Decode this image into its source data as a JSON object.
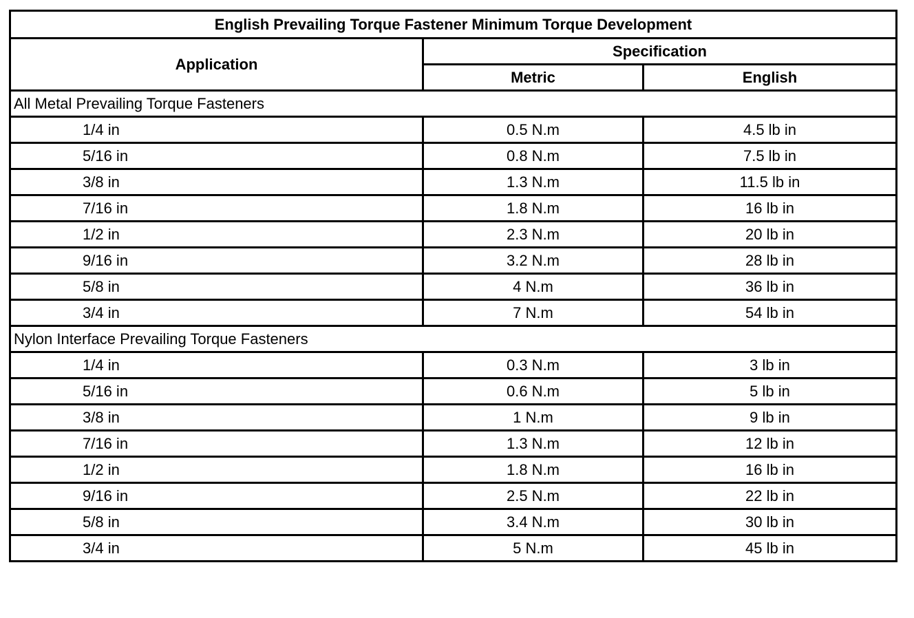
{
  "table": {
    "title": "English Prevailing Torque Fastener Minimum Torque Development",
    "headers": {
      "application": "Application",
      "specification": "Specification",
      "metric": "Metric",
      "english": "English"
    },
    "groups": [
      {
        "name": "All Metal Prevailing Torque Fasteners",
        "rows": [
          {
            "size": "1/4 in",
            "metric": "0.5 N.m",
            "english": "4.5 lb in"
          },
          {
            "size": "5/16 in",
            "metric": "0.8 N.m",
            "english": "7.5 lb in"
          },
          {
            "size": "3/8 in",
            "metric": "1.3 N.m",
            "english": "11.5 lb in"
          },
          {
            "size": "7/16 in",
            "metric": "1.8 N.m",
            "english": "16 lb in"
          },
          {
            "size": "1/2 in",
            "metric": "2.3 N.m",
            "english": "20 lb in"
          },
          {
            "size": "9/16 in",
            "metric": "3.2 N.m",
            "english": "28 lb in"
          },
          {
            "size": "5/8 in",
            "metric": "4 N.m",
            "english": "36 lb in"
          },
          {
            "size": "3/4 in",
            "metric": "7 N.m",
            "english": "54 lb in"
          }
        ]
      },
      {
        "name": "Nylon Interface Prevailing Torque Fasteners",
        "rows": [
          {
            "size": "1/4 in",
            "metric": "0.3 N.m",
            "english": "3 lb in"
          },
          {
            "size": "5/16 in",
            "metric": "0.6 N.m",
            "english": "5 lb in"
          },
          {
            "size": "3/8 in",
            "metric": "1 N.m",
            "english": "9 lb in"
          },
          {
            "size": "7/16 in",
            "metric": "1.3 N.m",
            "english": "12 lb in"
          },
          {
            "size": "1/2 in",
            "metric": "1.8 N.m",
            "english": "16 lb in"
          },
          {
            "size": "9/16 in",
            "metric": "2.5 N.m",
            "english": "22 lb in"
          },
          {
            "size": "5/8 in",
            "metric": "3.4 N.m",
            "english": "30 lb in"
          },
          {
            "size": "3/4 in",
            "metric": "5 N.m",
            "english": "45 lb in"
          }
        ]
      }
    ]
  }
}
